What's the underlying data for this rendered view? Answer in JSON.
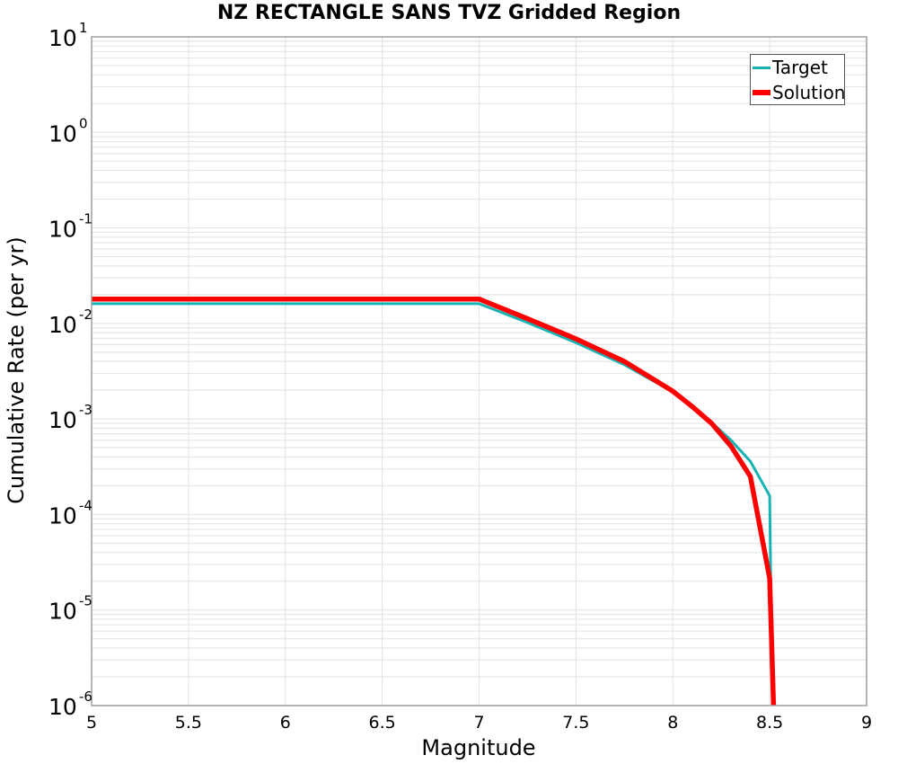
{
  "chart_data": {
    "type": "line",
    "title": "NZ RECTANGLE SANS TVZ Gridded Region",
    "xlabel": "Magnitude",
    "ylabel": "Cumulative Rate (per yr)",
    "xlim": [
      5,
      9
    ],
    "ylim": [
      1e-06,
      10
    ],
    "yscale": "log",
    "grid": true,
    "legend_position": "upper right",
    "x_ticks": [
      "5",
      "5.5",
      "6",
      "6.5",
      "7",
      "7.5",
      "8",
      "8.5",
      "9"
    ],
    "y_ticks": [
      {
        "base": "10",
        "exp": "1"
      },
      {
        "base": "10",
        "exp": "0"
      },
      {
        "base": "10",
        "exp": "-1"
      },
      {
        "base": "10",
        "exp": "-2"
      },
      {
        "base": "10",
        "exp": "-3"
      },
      {
        "base": "10",
        "exp": "-4"
      },
      {
        "base": "10",
        "exp": "-5"
      },
      {
        "base": "10",
        "exp": "-6"
      }
    ],
    "series": [
      {
        "name": "Target",
        "color": "#17b3b3",
        "width": 3,
        "x": [
          5.0,
          7.0,
          7.25,
          7.5,
          7.75,
          8.0,
          8.1,
          8.2,
          8.3,
          8.4,
          8.5,
          8.505
        ],
        "y": [
          0.0161,
          0.0161,
          0.0102,
          0.0063,
          0.0037,
          0.00192,
          0.00135,
          0.00092,
          0.0006,
          0.00036,
          0.000157,
          2.25e-05
        ]
      },
      {
        "name": "Solution",
        "color": "#ff0000",
        "width": 5.5,
        "x": [
          5.0,
          7.0,
          7.25,
          7.5,
          7.75,
          8.0,
          8.1,
          8.2,
          8.3,
          8.4,
          8.5,
          8.52
        ],
        "y": [
          0.018,
          0.018,
          0.0112,
          0.0069,
          0.004,
          0.00195,
          0.00135,
          0.0009,
          0.00052,
          0.00025,
          2.15e-05,
          1e-06
        ]
      }
    ]
  },
  "legend": {
    "items": [
      {
        "label": "Target",
        "color": "#17b3b3"
      },
      {
        "label": "Solution",
        "color": "#ff0000"
      }
    ]
  },
  "style": {
    "axis_color": "#a0a0a0",
    "grid_color": "#e6e6e6"
  }
}
